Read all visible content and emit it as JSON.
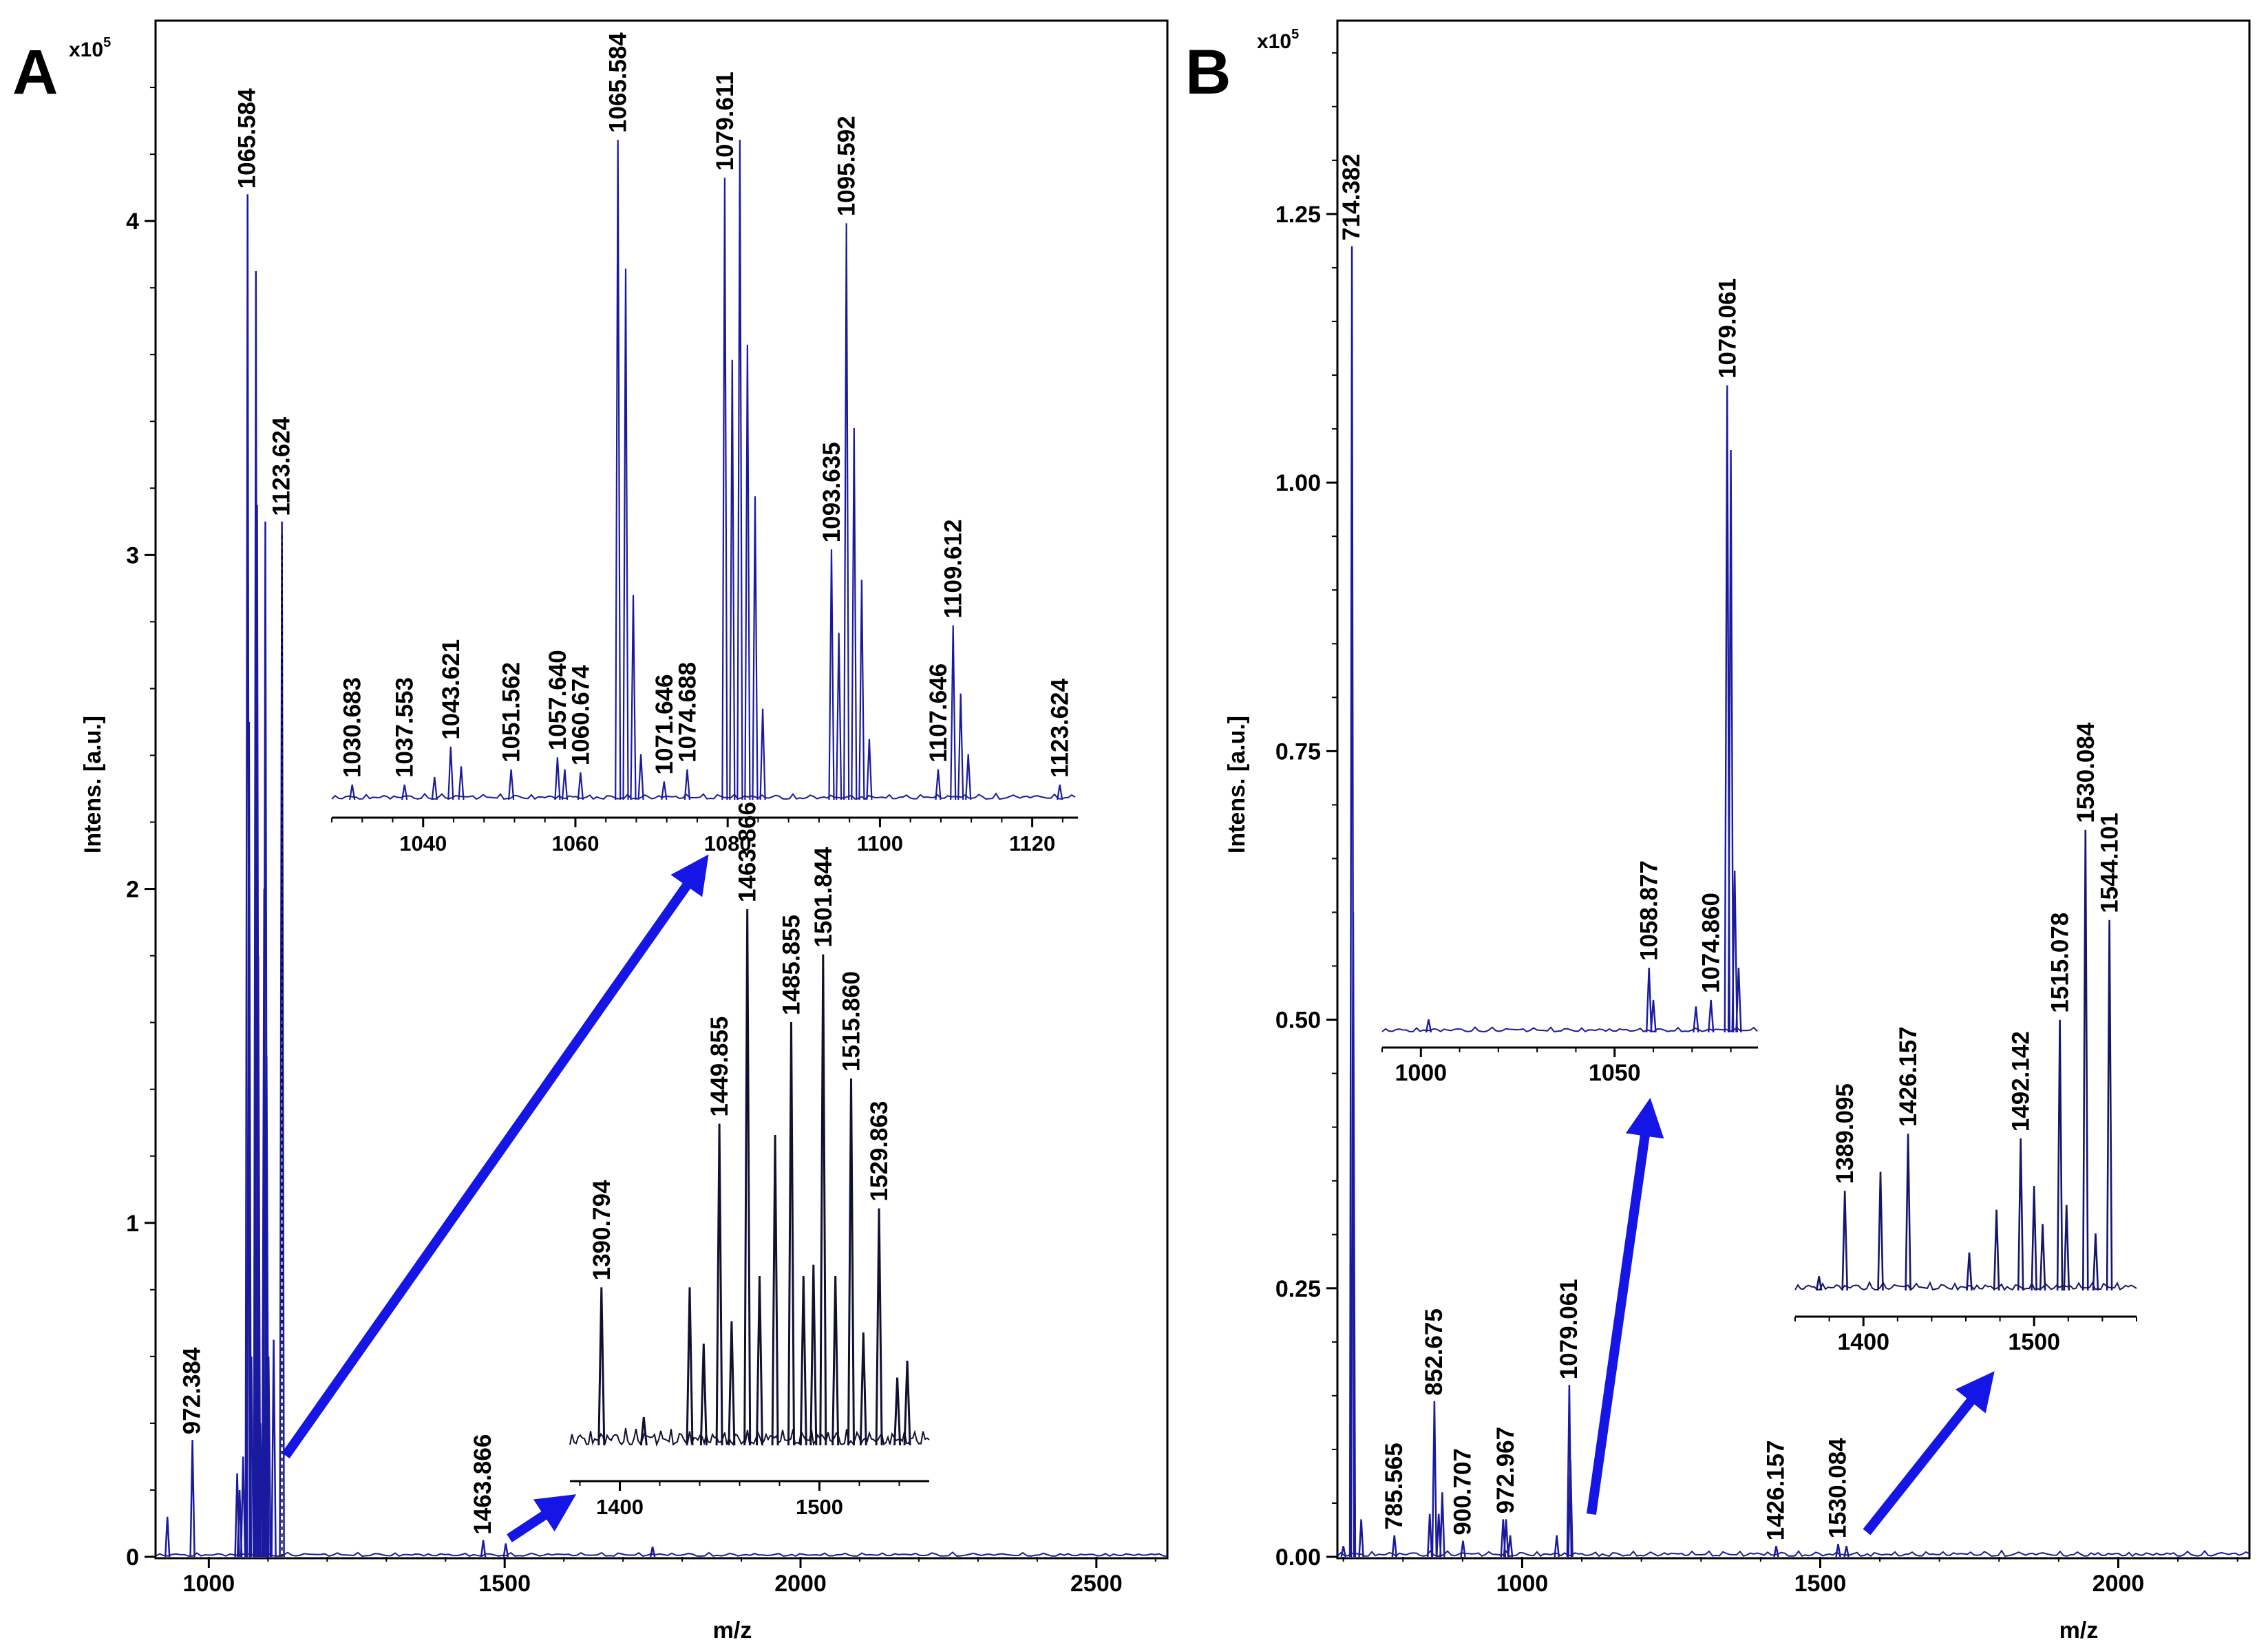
{
  "figure": {
    "colors": {
      "trace": "#1a1aa0",
      "arrow": "#1515e6",
      "axis": "#000000",
      "background": "#ffffff"
    }
  },
  "chart_data": [
    {
      "panel": "A",
      "type": "line",
      "title": "",
      "xlabel": "m/z",
      "ylabel": "Intens. [a.u.]",
      "y_multiplier": "x10",
      "y_multiplier_exp": "5",
      "xlim": [
        910,
        2620
      ],
      "ylim": [
        0,
        4.6
      ],
      "xticks": [
        1000,
        1500,
        2000,
        2500
      ],
      "yticks": [
        0,
        1,
        2,
        3,
        4
      ],
      "peaks": [
        {
          "x": 930,
          "y": 0.12
        },
        {
          "x": 972.384,
          "y": 0.35,
          "label": "972.384"
        },
        {
          "x": 1048,
          "y": 0.25
        },
        {
          "x": 1052,
          "y": 0.2
        },
        {
          "x": 1058,
          "y": 0.3
        },
        {
          "x": 1065.584,
          "y": 4.08,
          "label": "1065.584"
        },
        {
          "x": 1068,
          "y": 2.5
        },
        {
          "x": 1072,
          "y": 0.6
        },
        {
          "x": 1079.611,
          "y": 3.85
        },
        {
          "x": 1081.6,
          "y": 3.15
        },
        {
          "x": 1083.6,
          "y": 1.8
        },
        {
          "x": 1087,
          "y": 0.4
        },
        {
          "x": 1093.6,
          "y": 2.0
        },
        {
          "x": 1095.592,
          "y": 3.1
        },
        {
          "x": 1097.6,
          "y": 1.5
        },
        {
          "x": 1101,
          "y": 0.6
        },
        {
          "x": 1109.612,
          "y": 0.65
        },
        {
          "x": 1123.624,
          "y": 3.1,
          "label": "1123.624"
        },
        {
          "x": 1463.866,
          "y": 0.05,
          "label": "1463.866"
        },
        {
          "x": 1501.844,
          "y": 0.04
        },
        {
          "x": 1750,
          "y": 0.03
        }
      ],
      "insets": [
        {
          "xlim": [
            1028,
            1126
          ],
          "ylim": [
            0,
            4.6
          ],
          "xticks": [
            1040,
            1060,
            1080,
            1100,
            1120
          ],
          "peaks": [
            {
              "x": 1030.683,
              "y": 0.1,
              "label": "1030.683"
            },
            {
              "x": 1037.553,
              "y": 0.1,
              "label": "1037.553"
            },
            {
              "x": 1041.5,
              "y": 0.15
            },
            {
              "x": 1043.621,
              "y": 0.35,
              "label": "1043.621"
            },
            {
              "x": 1045,
              "y": 0.22
            },
            {
              "x": 1051.562,
              "y": 0.2,
              "label": "1051.562"
            },
            {
              "x": 1057.64,
              "y": 0.28,
              "label": "1057.640"
            },
            {
              "x": 1058.6,
              "y": 0.2
            },
            {
              "x": 1060.674,
              "y": 0.18,
              "label": "1060.674"
            },
            {
              "x": 1065.584,
              "y": 4.35,
              "label": "1065.584"
            },
            {
              "x": 1066.6,
              "y": 3.5
            },
            {
              "x": 1067.6,
              "y": 1.35
            },
            {
              "x": 1068.6,
              "y": 0.3
            },
            {
              "x": 1071.646,
              "y": 0.12,
              "label": "1071.646"
            },
            {
              "x": 1074.688,
              "y": 0.2,
              "label": "1074.688"
            },
            {
              "x": 1079.611,
              "y": 4.1,
              "label": "1079.611"
            },
            {
              "x": 1080.6,
              "y": 2.9
            },
            {
              "x": 1081.6,
              "y": 4.35
            },
            {
              "x": 1082.6,
              "y": 3.0
            },
            {
              "x": 1083.6,
              "y": 2.0
            },
            {
              "x": 1084.6,
              "y": 0.6
            },
            {
              "x": 1093.635,
              "y": 1.65,
              "label": "1093.635"
            },
            {
              "x": 1094.6,
              "y": 1.1
            },
            {
              "x": 1095.592,
              "y": 3.8,
              "label": "1095.592"
            },
            {
              "x": 1096.6,
              "y": 2.45
            },
            {
              "x": 1097.6,
              "y": 1.45
            },
            {
              "x": 1098.6,
              "y": 0.4
            },
            {
              "x": 1107.646,
              "y": 0.2,
              "label": "1107.646"
            },
            {
              "x": 1109.612,
              "y": 1.15,
              "label": "1109.612"
            },
            {
              "x": 1110.6,
              "y": 0.7
            },
            {
              "x": 1111.6,
              "y": 0.3
            },
            {
              "x": 1123.624,
              "y": 0.1,
              "label": "1123.624"
            }
          ]
        },
        {
          "xlim": [
            1375,
            1555
          ],
          "ylim": [
            0,
            1
          ],
          "xticks": [
            1400,
            1500
          ],
          "peaks": [
            {
              "x": 1390.794,
              "y": 0.28,
              "label": "1390.794"
            },
            {
              "x": 1412,
              "y": 0.05
            },
            {
              "x": 1435,
              "y": 0.28
            },
            {
              "x": 1442,
              "y": 0.18
            },
            {
              "x": 1449.855,
              "y": 0.57,
              "label": "1449.855"
            },
            {
              "x": 1456,
              "y": 0.22
            },
            {
              "x": 1463.866,
              "y": 0.95,
              "label": "1463.866"
            },
            {
              "x": 1470,
              "y": 0.3
            },
            {
              "x": 1477.8,
              "y": 0.55
            },
            {
              "x": 1485.855,
              "y": 0.75,
              "label": "1485.855"
            },
            {
              "x": 1492,
              "y": 0.3
            },
            {
              "x": 1497,
              "y": 0.32
            },
            {
              "x": 1501.844,
              "y": 0.87,
              "label": "1501.844"
            },
            {
              "x": 1508,
              "y": 0.3
            },
            {
              "x": 1515.86,
              "y": 0.65,
              "label": "1515.860"
            },
            {
              "x": 1522,
              "y": 0.2
            },
            {
              "x": 1529.863,
              "y": 0.42,
              "label": "1529.863"
            },
            {
              "x": 1539,
              "y": 0.12
            },
            {
              "x": 1544,
              "y": 0.15
            }
          ]
        }
      ]
    },
    {
      "panel": "B",
      "type": "line",
      "title": "",
      "xlabel": "m/z",
      "ylabel": "Intens. [a.u.]",
      "y_multiplier": "x10",
      "y_multiplier_exp": "5",
      "xlim": [
        690,
        2220
      ],
      "ylim": [
        0,
        1.43
      ],
      "xticks": [
        1000,
        1500,
        2000
      ],
      "yticks": [
        0,
        0.25,
        0.5,
        0.75,
        1.0,
        1.25
      ],
      "ytick_labels": [
        "0.00",
        "0.25",
        "0.50",
        "0.75",
        "1.00",
        "1.25"
      ],
      "peaks": [
        {
          "x": 700,
          "y": 0.01
        },
        {
          "x": 714.382,
          "y": 1.22,
          "label": "714.382"
        },
        {
          "x": 716.5,
          "y": 0.6
        },
        {
          "x": 730,
          "y": 0.035
        },
        {
          "x": 785.565,
          "y": 0.02,
          "label": "785.565"
        },
        {
          "x": 845,
          "y": 0.04
        },
        {
          "x": 852.675,
          "y": 0.145,
          "label": "852.675"
        },
        {
          "x": 860,
          "y": 0.04
        },
        {
          "x": 866,
          "y": 0.06
        },
        {
          "x": 900.707,
          "y": 0.015,
          "label": "900.707"
        },
        {
          "x": 968,
          "y": 0.035
        },
        {
          "x": 972.967,
          "y": 0.035,
          "label": "972.967"
        },
        {
          "x": 980,
          "y": 0.02
        },
        {
          "x": 1058,
          "y": 0.02
        },
        {
          "x": 1079.061,
          "y": 0.16,
          "label": "1079.061"
        },
        {
          "x": 1081,
          "y": 0.09
        },
        {
          "x": 1426.157,
          "y": 0.01,
          "label": "1426.157"
        },
        {
          "x": 1530.084,
          "y": 0.012,
          "label": "1530.084"
        },
        {
          "x": 1544,
          "y": 0.01
        }
      ],
      "insets": [
        {
          "xlim": [
            990,
            1087
          ],
          "ylim": [
            0,
            1
          ],
          "xticks": [
            1000,
            1050
          ],
          "peaks": [
            {
              "x": 1002,
              "y": 0.02
            },
            {
              "x": 1058.877,
              "y": 0.1,
              "label": "1058.877"
            },
            {
              "x": 1060,
              "y": 0.05
            },
            {
              "x": 1071,
              "y": 0.04
            },
            {
              "x": 1074.86,
              "y": 0.05,
              "label": "1074.860"
            },
            {
              "x": 1079.061,
              "y": 1.0,
              "label": "1079.061"
            },
            {
              "x": 1080,
              "y": 0.9
            },
            {
              "x": 1081,
              "y": 0.25
            },
            {
              "x": 1082,
              "y": 0.1
            }
          ]
        },
        {
          "xlim": [
            1360,
            1560
          ],
          "ylim": [
            0,
            1
          ],
          "xticks": [
            1400,
            1500
          ],
          "peaks": [
            {
              "x": 1374,
              "y": 0.03
            },
            {
              "x": 1389.095,
              "y": 0.21,
              "label": "1389.095"
            },
            {
              "x": 1410,
              "y": 0.25
            },
            {
              "x": 1426.157,
              "y": 0.33,
              "label": "1426.157"
            },
            {
              "x": 1462,
              "y": 0.08
            },
            {
              "x": 1478,
              "y": 0.17
            },
            {
              "x": 1492.142,
              "y": 0.32,
              "label": "1492.142"
            },
            {
              "x": 1500,
              "y": 0.22
            },
            {
              "x": 1505,
              "y": 0.14
            },
            {
              "x": 1515.078,
              "y": 0.57,
              "label": "1515.078"
            },
            {
              "x": 1519,
              "y": 0.18
            },
            {
              "x": 1530.084,
              "y": 0.97,
              "label": "1530.084"
            },
            {
              "x": 1536,
              "y": 0.12
            },
            {
              "x": 1544.101,
              "y": 0.78,
              "label": "1544.101"
            }
          ]
        }
      ]
    }
  ]
}
